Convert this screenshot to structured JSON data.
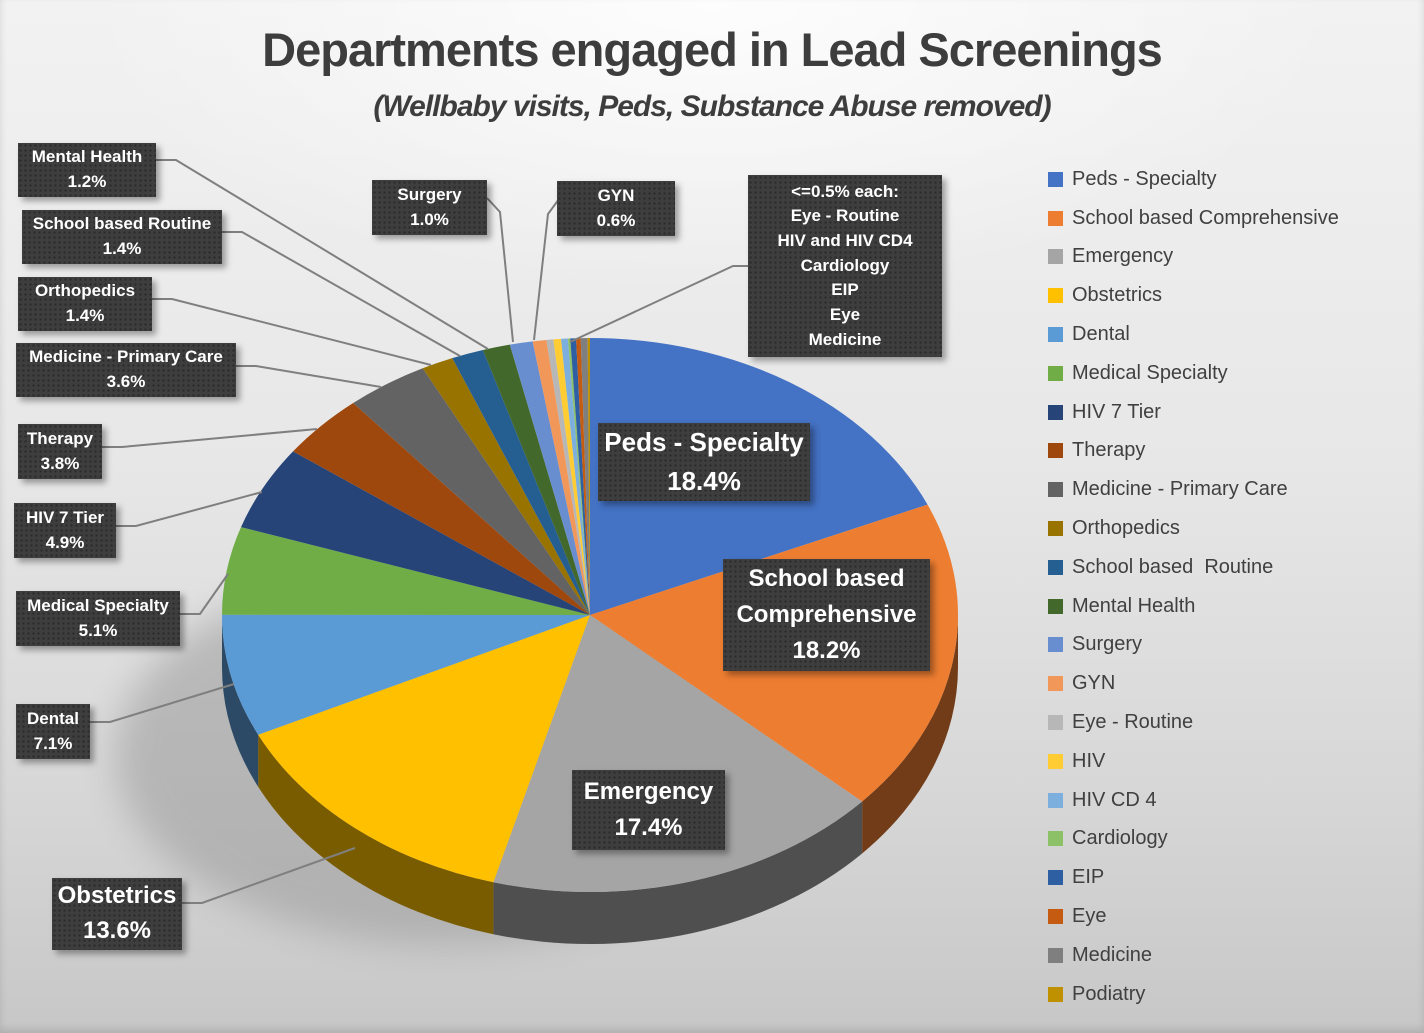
{
  "title": "Departments engaged in Lead Screenings",
  "subtitle": "(Wellbaby visits, Peds, Substance Abuse removed)",
  "chart_data": {
    "type": "pie",
    "style": "3d-pie",
    "title": "Departments engaged in Lead Screenings",
    "subtitle": "(Wellbaby visits, Peds, Substance Abuse removed)",
    "legend_position": "right",
    "start_angle_deg": 0,
    "direction": "clockwise",
    "slices": [
      {
        "label": "Peds - Specialty",
        "value": 18.4,
        "pct_label": "18.4%",
        "color": "#4472C4",
        "label_style": "inner"
      },
      {
        "label": "School based Comprehensive",
        "value": 18.2,
        "pct_label": "18.2%",
        "color": "#ED7D31",
        "label_style": "inner"
      },
      {
        "label": "Emergency",
        "value": 17.4,
        "pct_label": "17.4%",
        "color": "#A5A5A5",
        "label_style": "inner"
      },
      {
        "label": "Obstetrics",
        "value": 13.6,
        "pct_label": "13.6%",
        "color": "#FFC000",
        "label_style": "callout"
      },
      {
        "label": "Dental",
        "value": 7.1,
        "pct_label": "7.1%",
        "color": "#5B9BD5",
        "label_style": "callout"
      },
      {
        "label": "Medical Specialty",
        "value": 5.1,
        "pct_label": "5.1%",
        "color": "#70AD47",
        "label_style": "callout"
      },
      {
        "label": "HIV 7 Tier",
        "value": 4.9,
        "pct_label": "4.9%",
        "color": "#264478",
        "label_style": "callout"
      },
      {
        "label": "Therapy",
        "value": 3.8,
        "pct_label": "3.8%",
        "color": "#9E480E",
        "label_style": "callout"
      },
      {
        "label": "Medicine - Primary Care",
        "value": 3.6,
        "pct_label": "3.6%",
        "color": "#636363",
        "label_style": "callout"
      },
      {
        "label": "Orthopedics",
        "value": 1.4,
        "pct_label": "1.4%",
        "color": "#997300",
        "label_style": "callout"
      },
      {
        "label": "School based  Routine",
        "value": 1.4,
        "pct_label": "1.4%",
        "color": "#255E91",
        "label_style": "callout"
      },
      {
        "label": "Mental Health",
        "value": 1.2,
        "pct_label": "1.2%",
        "color": "#43682B",
        "label_style": "callout"
      },
      {
        "label": "Surgery",
        "value": 1.0,
        "pct_label": "1.0%",
        "color": "#698ED0",
        "label_style": "callout"
      },
      {
        "label": "GYN",
        "value": 0.6,
        "pct_label": "0.6%",
        "color": "#F1975A",
        "label_style": "callout"
      },
      {
        "label": "Eye - Routine",
        "value": 0.3,
        "pct_label": null,
        "color": "#B7B7B7",
        "label_style": "grouped"
      },
      {
        "label": "HIV",
        "value": 0.33,
        "pct_label": null,
        "color": "#FFCD33",
        "label_style": "grouped"
      },
      {
        "label": "HIV CD 4",
        "value": 0.3,
        "pct_label": null,
        "color": "#7CAFDD",
        "label_style": "grouped"
      },
      {
        "label": "Cardiology",
        "value": 0.1,
        "pct_label": null,
        "color": "#8CC168",
        "label_style": "grouped"
      },
      {
        "label": "EIP",
        "value": 0.25,
        "pct_label": null,
        "color": "#2E5FA3",
        "label_style": "grouped"
      },
      {
        "label": "Eye",
        "value": 0.2,
        "pct_label": null,
        "color": "#C55A11",
        "label_style": "grouped"
      },
      {
        "label": "Medicine",
        "value": 0.3,
        "pct_label": null,
        "color": "#7F7F7F",
        "label_style": "grouped"
      },
      {
        "label": "Podiatry",
        "value": 0.1,
        "pct_label": null,
        "color": "#BF9000",
        "label_style": "grouped"
      }
    ],
    "grouped_callout": {
      "header": "<=0.5% each:",
      "items": [
        "Eye - Routine",
        "HIV and HIV CD4",
        "Cardiology",
        "EIP",
        "Eye",
        "Medicine"
      ]
    }
  },
  "colors": {
    "label_box_bg": "#3e3e3e",
    "label_box_text": "#ffffff",
    "leader_line": "#7f7f7f",
    "title_text": "#3d3d3d",
    "legend_text": "#404040"
  }
}
